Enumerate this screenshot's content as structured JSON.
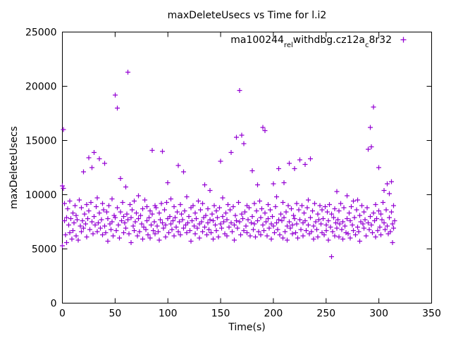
{
  "title": "maxDeleteUsecs vs Time for l.i2",
  "chart_data": {
    "type": "scatter",
    "title": "maxDeleteUsecs vs Time for l.i2",
    "xlabel": "Time(s)",
    "ylabel": "maxDeleteUsecs",
    "xlim": [
      0,
      350
    ],
    "ylim": [
      0,
      25000
    ],
    "xticks": [
      0,
      50,
      100,
      150,
      200,
      250,
      300,
      350
    ],
    "yticks": [
      0,
      5000,
      10000,
      15000,
      20000,
      25000
    ],
    "grid": false,
    "marker": "plus",
    "color": "#9400d3",
    "legend": {
      "position": "top-right",
      "label_text": "ma100244_rel_withdbg.cz12a_c8r32",
      "label_segments": [
        {
          "text": "ma100244"
        },
        {
          "text": "rel",
          "sub": true
        },
        {
          "text": "withdbg.cz12a",
          "sub": false
        },
        {
          "text": "c",
          "sub": true
        },
        {
          "text": "8r32",
          "sub": false
        }
      ]
    },
    "points": [
      [
        0,
        5300
      ],
      [
        0,
        10800
      ],
      [
        1,
        16000
      ],
      [
        1,
        10600
      ],
      [
        2,
        9200
      ],
      [
        2,
        7600
      ],
      [
        3,
        6300
      ],
      [
        4,
        7900
      ],
      [
        4,
        5600
      ],
      [
        5,
        8700
      ],
      [
        6,
        7200
      ],
      [
        7,
        6500
      ],
      [
        7,
        9400
      ],
      [
        8,
        7800
      ],
      [
        9,
        5900
      ],
      [
        10,
        8300
      ],
      [
        10,
        6700
      ],
      [
        11,
        7400
      ],
      [
        12,
        9000
      ],
      [
        13,
        6200
      ],
      [
        13,
        8100
      ],
      [
        14,
        7700
      ],
      [
        15,
        5800
      ],
      [
        16,
        9500
      ],
      [
        17,
        7100
      ],
      [
        18,
        6600
      ],
      [
        18,
        8800
      ],
      [
        19,
        7600
      ],
      [
        20,
        12100
      ],
      [
        20,
        6900
      ],
      [
        21,
        8200
      ],
      [
        22,
        7300
      ],
      [
        23,
        9100
      ],
      [
        23,
        6100
      ],
      [
        24,
        7800
      ],
      [
        25,
        13400
      ],
      [
        25,
        8500
      ],
      [
        26,
        6800
      ],
      [
        27,
        9300
      ],
      [
        28,
        12500
      ],
      [
        28,
        7500
      ],
      [
        29,
        6400
      ],
      [
        30,
        13900
      ],
      [
        30,
        8000
      ],
      [
        31,
        7200
      ],
      [
        32,
        8900
      ],
      [
        33,
        6600
      ],
      [
        33,
        9700
      ],
      [
        34,
        7400
      ],
      [
        35,
        13300
      ],
      [
        35,
        8300
      ],
      [
        36,
        6900
      ],
      [
        37,
        7700
      ],
      [
        38,
        9200
      ],
      [
        38,
        6300
      ],
      [
        39,
        8600
      ],
      [
        40,
        12900
      ],
      [
        40,
        7100
      ],
      [
        41,
        6500
      ],
      [
        42,
        8400
      ],
      [
        43,
        7800
      ],
      [
        43,
        5700
      ],
      [
        44,
        9000
      ],
      [
        45,
        7300
      ],
      [
        46,
        6800
      ],
      [
        47,
        9600
      ],
      [
        47,
        7500
      ],
      [
        48,
        6200
      ],
      [
        49,
        8100
      ],
      [
        50,
        19200
      ],
      [
        50,
        7900
      ],
      [
        51,
        6700
      ],
      [
        52,
        18000
      ],
      [
        52,
        8800
      ],
      [
        53,
        7200
      ],
      [
        54,
        6000
      ],
      [
        55,
        11500
      ],
      [
        55,
        8400
      ],
      [
        56,
        7600
      ],
      [
        57,
        9300
      ],
      [
        58,
        6500
      ],
      [
        58,
        8000
      ],
      [
        59,
        7400
      ],
      [
        60,
        10700
      ],
      [
        60,
        6900
      ],
      [
        61,
        8200
      ],
      [
        62,
        21300
      ],
      [
        62,
        7700
      ],
      [
        63,
        6400
      ],
      [
        64,
        9100
      ],
      [
        65,
        7900
      ],
      [
        65,
        5600
      ],
      [
        66,
        8600
      ],
      [
        67,
        7100
      ],
      [
        68,
        6700
      ],
      [
        68,
        9400
      ],
      [
        69,
        7500
      ],
      [
        70,
        8300
      ],
      [
        71,
        6200
      ],
      [
        72,
        7800
      ],
      [
        72,
        9900
      ],
      [
        73,
        6600
      ],
      [
        74,
        8100
      ],
      [
        75,
        7300
      ],
      [
        76,
        5900
      ],
      [
        76,
        8700
      ],
      [
        77,
        7000
      ],
      [
        78,
        9500
      ],
      [
        79,
        6800
      ],
      [
        80,
        7600
      ],
      [
        80,
        8900
      ],
      [
        81,
        6300
      ],
      [
        82,
        7900
      ],
      [
        83,
        8500
      ],
      [
        83,
        6000
      ],
      [
        84,
        7200
      ],
      [
        85,
        14100
      ],
      [
        85,
        8200
      ],
      [
        86,
        6700
      ],
      [
        87,
        7500
      ],
      [
        88,
        9000
      ],
      [
        88,
        6400
      ],
      [
        89,
        8800
      ],
      [
        90,
        7100
      ],
      [
        91,
        6600
      ],
      [
        92,
        8300
      ],
      [
        92,
        5800
      ],
      [
        93,
        7700
      ],
      [
        94,
        9200
      ],
      [
        95,
        14000
      ],
      [
        95,
        7400
      ],
      [
        96,
        6900
      ],
      [
        97,
        8600
      ],
      [
        98,
        7200
      ],
      [
        98,
        6100
      ],
      [
        99,
        9300
      ],
      [
        100,
        11100
      ],
      [
        100,
        7800
      ],
      [
        101,
        6500
      ],
      [
        102,
        8000
      ],
      [
        103,
        7300
      ],
      [
        103,
        9600
      ],
      [
        104,
        6800
      ],
      [
        105,
        7600
      ],
      [
        106,
        8900
      ],
      [
        106,
        6200
      ],
      [
        107,
        7900
      ],
      [
        108,
        7000
      ],
      [
        109,
        8400
      ],
      [
        110,
        12700
      ],
      [
        110,
        6600
      ],
      [
        111,
        7500
      ],
      [
        112,
        9100
      ],
      [
        112,
        6300
      ],
      [
        113,
        8200
      ],
      [
        114,
        7700
      ],
      [
        115,
        12100
      ],
      [
        115,
        6900
      ],
      [
        116,
        8500
      ],
      [
        117,
        7200
      ],
      [
        118,
        6500
      ],
      [
        118,
        9800
      ],
      [
        119,
        7400
      ],
      [
        120,
        8000
      ],
      [
        121,
        6700
      ],
      [
        122,
        8800
      ],
      [
        122,
        5700
      ],
      [
        123,
        7600
      ],
      [
        124,
        9000
      ],
      [
        125,
        7100
      ],
      [
        126,
        6400
      ],
      [
        126,
        8300
      ],
      [
        127,
        7800
      ],
      [
        128,
        6900
      ],
      [
        129,
        9400
      ],
      [
        130,
        7300
      ],
      [
        130,
        6000
      ],
      [
        131,
        8600
      ],
      [
        132,
        7500
      ],
      [
        133,
        6600
      ],
      [
        133,
        9200
      ],
      [
        134,
        7900
      ],
      [
        135,
        10900
      ],
      [
        135,
        7000
      ],
      [
        136,
        8100
      ],
      [
        137,
        6300
      ],
      [
        138,
        8700
      ],
      [
        138,
        7400
      ],
      [
        139,
        6800
      ],
      [
        140,
        10400
      ],
      [
        140,
        7700
      ],
      [
        141,
        6500
      ],
      [
        142,
        8200
      ],
      [
        143,
        7600
      ],
      [
        143,
        5900
      ],
      [
        144,
        9000
      ],
      [
        145,
        7200
      ],
      [
        146,
        6700
      ],
      [
        146,
        8500
      ],
      [
        147,
        7900
      ],
      [
        148,
        6100
      ],
      [
        149,
        8800
      ],
      [
        150,
        13100
      ],
      [
        150,
        7300
      ],
      [
        151,
        6900
      ],
      [
        152,
        8000
      ],
      [
        152,
        9700
      ],
      [
        153,
        7500
      ],
      [
        154,
        6400
      ],
      [
        155,
        8300
      ],
      [
        156,
        7700
      ],
      [
        156,
        6200
      ],
      [
        157,
        9100
      ],
      [
        158,
        7000
      ],
      [
        159,
        8600
      ],
      [
        160,
        13900
      ],
      [
        160,
        7400
      ],
      [
        161,
        6600
      ],
      [
        162,
        8900
      ],
      [
        163,
        7200
      ],
      [
        163,
        5800
      ],
      [
        164,
        8100
      ],
      [
        165,
        15300
      ],
      [
        165,
        7600
      ],
      [
        166,
        6900
      ],
      [
        167,
        9300
      ],
      [
        168,
        19600
      ],
      [
        168,
        7500
      ],
      [
        169,
        6300
      ],
      [
        170,
        15500
      ],
      [
        170,
        8200
      ],
      [
        171,
        7800
      ],
      [
        172,
        14700
      ],
      [
        172,
        6700
      ],
      [
        173,
        8400
      ],
      [
        174,
        7100
      ],
      [
        175,
        9000
      ],
      [
        175,
        6500
      ],
      [
        176,
        7700
      ],
      [
        177,
        8800
      ],
      [
        178,
        6200
      ],
      [
        179,
        7400
      ],
      [
        180,
        12200
      ],
      [
        180,
        8000
      ],
      [
        181,
        6800
      ],
      [
        182,
        9200
      ],
      [
        182,
        7300
      ],
      [
        183,
        6100
      ],
      [
        184,
        8500
      ],
      [
        185,
        10900
      ],
      [
        185,
        7600
      ],
      [
        186,
        6600
      ],
      [
        187,
        9400
      ],
      [
        188,
        7900
      ],
      [
        188,
        6300
      ],
      [
        189,
        8700
      ],
      [
        190,
        16200
      ],
      [
        190,
        7200
      ],
      [
        191,
        6700
      ],
      [
        192,
        15900
      ],
      [
        192,
        8300
      ],
      [
        193,
        7500
      ],
      [
        194,
        6200
      ],
      [
        195,
        9100
      ],
      [
        195,
        7800
      ],
      [
        196,
        6900
      ],
      [
        197,
        8600
      ],
      [
        198,
        7300
      ],
      [
        198,
        5900
      ],
      [
        199,
        8000
      ],
      [
        200,
        11000
      ],
      [
        200,
        7100
      ],
      [
        201,
        6500
      ],
      [
        202,
        8900
      ],
      [
        203,
        7400
      ],
      [
        203,
        9800
      ],
      [
        204,
        6800
      ],
      [
        205,
        12400
      ],
      [
        205,
        7700
      ],
      [
        206,
        6300
      ],
      [
        207,
        8200
      ],
      [
        208,
        7600
      ],
      [
        209,
        6000
      ],
      [
        209,
        9300
      ],
      [
        210,
        11100
      ],
      [
        210,
        7900
      ],
      [
        211,
        6600
      ],
      [
        212,
        8400
      ],
      [
        213,
        7100
      ],
      [
        213,
        5800
      ],
      [
        214,
        9000
      ],
      [
        215,
        12900
      ],
      [
        215,
        7500
      ],
      [
        216,
        6900
      ],
      [
        217,
        8700
      ],
      [
        218,
        7200
      ],
      [
        218,
        6400
      ],
      [
        219,
        8100
      ],
      [
        220,
        12400
      ],
      [
        220,
        7800
      ],
      [
        221,
        6500
      ],
      [
        222,
        9200
      ],
      [
        222,
        7300
      ],
      [
        223,
        6000
      ],
      [
        224,
        8600
      ],
      [
        225,
        13200
      ],
      [
        225,
        7700
      ],
      [
        226,
        6800
      ],
      [
        227,
        9000
      ],
      [
        228,
        7400
      ],
      [
        228,
        6200
      ],
      [
        229,
        8300
      ],
      [
        230,
        12800
      ],
      [
        230,
        7600
      ],
      [
        231,
        6700
      ],
      [
        232,
        8800
      ],
      [
        233,
        7200
      ],
      [
        233,
        9500
      ],
      [
        234,
        6400
      ],
      [
        235,
        13300
      ],
      [
        235,
        7900
      ],
      [
        236,
        6600
      ],
      [
        237,
        8500
      ],
      [
        238,
        7100
      ],
      [
        238,
        5900
      ],
      [
        239,
        9200
      ],
      [
        240,
        7500
      ],
      [
        241,
        6800
      ],
      [
        242,
        8200
      ],
      [
        242,
        6100
      ],
      [
        243,
        7700
      ],
      [
        244,
        9000
      ],
      [
        245,
        7300
      ],
      [
        246,
        6500
      ],
      [
        246,
        8600
      ],
      [
        247,
        7800
      ],
      [
        248,
        6300
      ],
      [
        249,
        8900
      ],
      [
        250,
        7200
      ],
      [
        250,
        6700
      ],
      [
        251,
        8400
      ],
      [
        252,
        7600
      ],
      [
        252,
        5800
      ],
      [
        253,
        9100
      ],
      [
        254,
        7000
      ],
      [
        255,
        4300
      ],
      [
        255,
        8200
      ],
      [
        256,
        6600
      ],
      [
        257,
        7900
      ],
      [
        258,
        6200
      ],
      [
        258,
        8700
      ],
      [
        259,
        7400
      ],
      [
        260,
        10300
      ],
      [
        260,
        6900
      ],
      [
        261,
        7700
      ],
      [
        262,
        8500
      ],
      [
        262,
        6100
      ],
      [
        263,
        7300
      ],
      [
        264,
        9200
      ],
      [
        265,
        6800
      ],
      [
        266,
        7500
      ],
      [
        266,
        5900
      ],
      [
        267,
        8800
      ],
      [
        268,
        7100
      ],
      [
        269,
        6500
      ],
      [
        270,
        9900
      ],
      [
        270,
        7800
      ],
      [
        271,
        6400
      ],
      [
        272,
        8300
      ],
      [
        273,
        7600
      ],
      [
        273,
        6000
      ],
      [
        274,
        8900
      ],
      [
        275,
        7200
      ],
      [
        276,
        6700
      ],
      [
        276,
        9400
      ],
      [
        277,
        7900
      ],
      [
        278,
        6300
      ],
      [
        279,
        8600
      ],
      [
        280,
        9500
      ],
      [
        280,
        7000
      ],
      [
        281,
        6600
      ],
      [
        282,
        8100
      ],
      [
        282,
        5700
      ],
      [
        283,
        7500
      ],
      [
        284,
        9000
      ],
      [
        285,
        7300
      ],
      [
        286,
        6900
      ],
      [
        286,
        8400
      ],
      [
        287,
        7700
      ],
      [
        288,
        6200
      ],
      [
        289,
        8800
      ],
      [
        290,
        14200
      ],
      [
        290,
        7400
      ],
      [
        291,
        6800
      ],
      [
        292,
        16200
      ],
      [
        292,
        8000
      ],
      [
        293,
        14400
      ],
      [
        293,
        7200
      ],
      [
        294,
        6500
      ],
      [
        295,
        18100
      ],
      [
        295,
        8300
      ],
      [
        296,
        7600
      ],
      [
        297,
        6100
      ],
      [
        297,
        9100
      ],
      [
        298,
        7800
      ],
      [
        299,
        6700
      ],
      [
        300,
        12500
      ],
      [
        300,
        8500
      ],
      [
        301,
        7000
      ],
      [
        302,
        8200
      ],
      [
        302,
        6300
      ],
      [
        303,
        7700
      ],
      [
        304,
        9300
      ],
      [
        305,
        10400
      ],
      [
        305,
        7400
      ],
      [
        306,
        6800
      ],
      [
        307,
        8600
      ],
      [
        308,
        11000
      ],
      [
        308,
        7100
      ],
      [
        309,
        6400
      ],
      [
        310,
        10100
      ],
      [
        310,
        7900
      ],
      [
        311,
        6600
      ],
      [
        312,
        11200
      ],
      [
        312,
        8400
      ],
      [
        313,
        7300
      ],
      [
        313,
        5600
      ],
      [
        314,
        9000
      ],
      [
        314,
        6900
      ],
      [
        315,
        7600
      ]
    ]
  }
}
